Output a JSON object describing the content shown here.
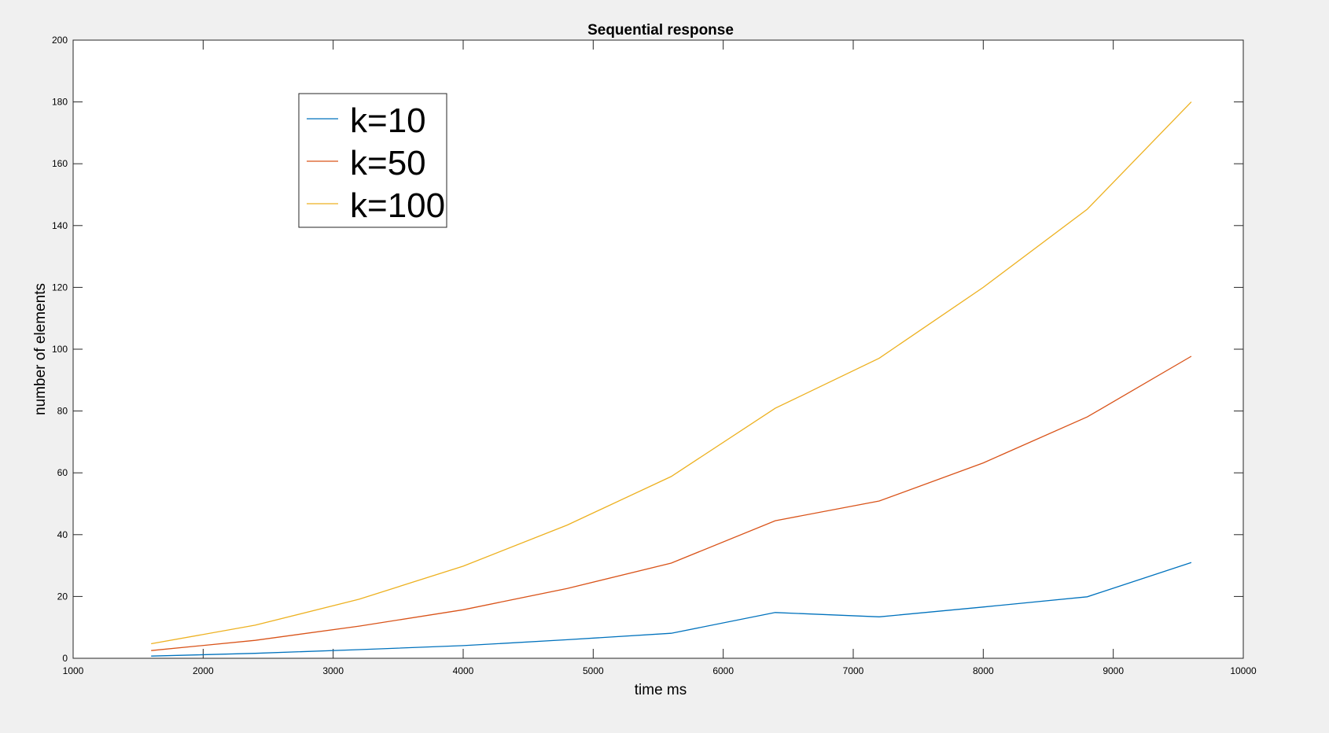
{
  "chart_data": {
    "type": "line",
    "title": "Sequential response",
    "xlabel": "time ms",
    "ylabel": "number of elements",
    "xlim": [
      1000,
      10000
    ],
    "ylim": [
      0,
      200
    ],
    "xticks": [
      1000,
      2000,
      3000,
      4000,
      5000,
      6000,
      7000,
      8000,
      9000,
      10000
    ],
    "yticks": [
      0,
      20,
      40,
      60,
      80,
      100,
      120,
      140,
      160,
      180,
      200
    ],
    "grid": false,
    "legend_position": "top-left",
    "x": [
      1600,
      2400,
      3200,
      4000,
      4800,
      5600,
      6400,
      7200,
      8000,
      8800,
      9600
    ],
    "series": [
      {
        "name": "k=10",
        "color": "#0072bd",
        "values": [
          0.7,
          1.6,
          2.8,
          4.1,
          6.0,
          8.1,
          14.8,
          13.4,
          16.6,
          19.9,
          31.0
        ]
      },
      {
        "name": "k=50",
        "color": "#d95319",
        "values": [
          2.5,
          5.8,
          10.4,
          15.7,
          22.6,
          30.8,
          44.5,
          50.9,
          63.2,
          78.1,
          97.7
        ]
      },
      {
        "name": "k=100",
        "color": "#edb120",
        "values": [
          4.7,
          10.7,
          19.1,
          29.8,
          43.1,
          58.8,
          80.9,
          97.1,
          120.0,
          145.3,
          180.0
        ]
      }
    ]
  }
}
